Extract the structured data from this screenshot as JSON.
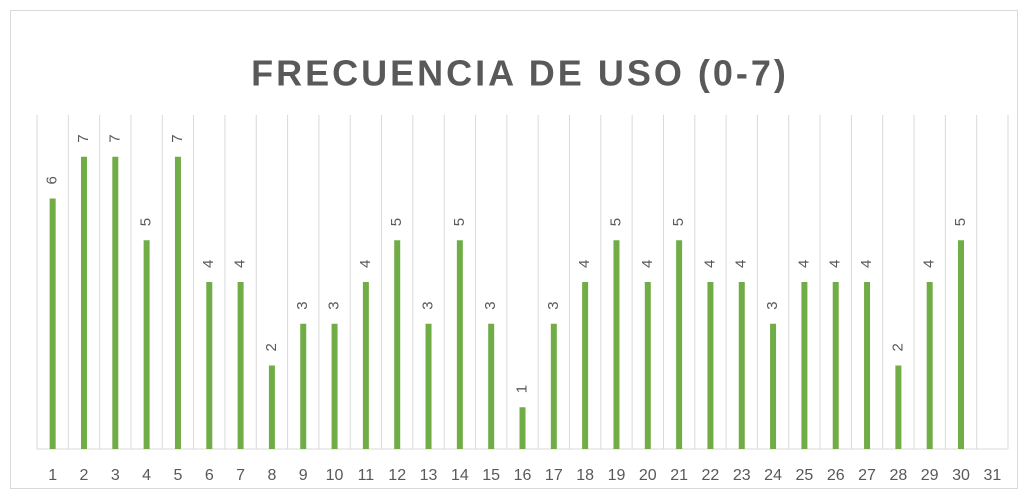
{
  "chart_data": {
    "type": "bar",
    "title": "FRECUENCIA DE USO (0-7)",
    "categories": [
      1,
      2,
      3,
      4,
      5,
      6,
      7,
      8,
      9,
      10,
      11,
      12,
      13,
      14,
      15,
      16,
      17,
      18,
      19,
      20,
      21,
      22,
      23,
      24,
      25,
      26,
      27,
      28,
      29,
      30,
      31
    ],
    "values": [
      6,
      7,
      7,
      5,
      7,
      4,
      4,
      2,
      3,
      3,
      4,
      5,
      3,
      5,
      3,
      1,
      3,
      4,
      5,
      4,
      5,
      4,
      4,
      3,
      4,
      4,
      4,
      2,
      4,
      5,
      null
    ],
    "color": "#70ad47",
    "ylim": [
      0,
      8
    ],
    "grid": true
  }
}
